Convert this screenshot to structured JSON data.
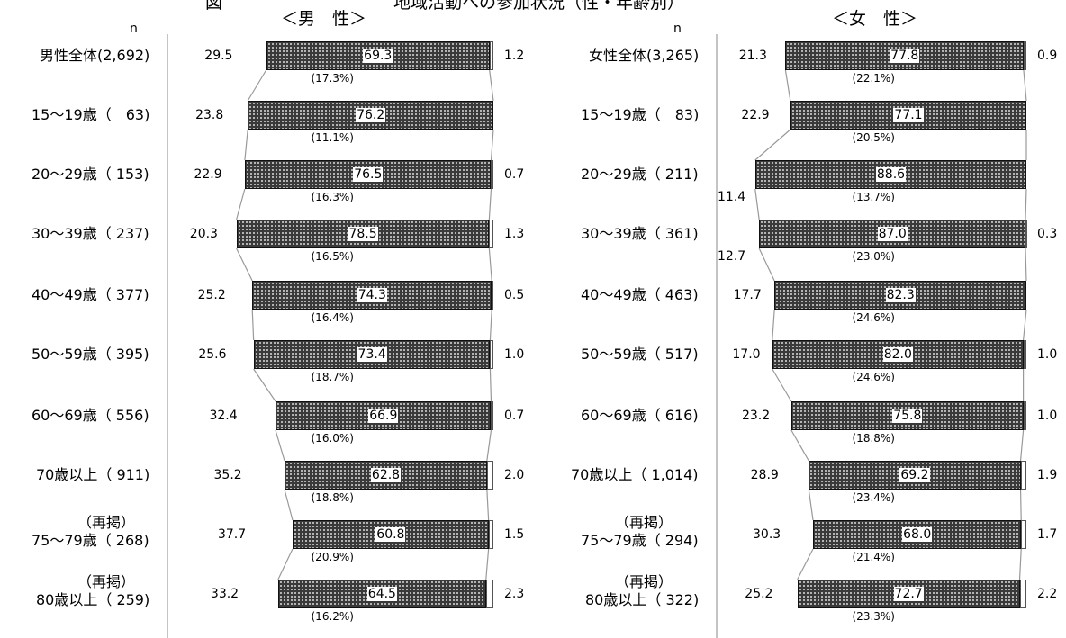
{
  "page": {
    "title_fragment": "図　　　　　　　　　　地域活動への参加状況（性・年齢別）",
    "male_header": "＜男　性＞",
    "female_header": "＜女　性＞",
    "n_label": "n"
  },
  "chart_data": [
    {
      "type": "bar",
      "stacked": "horizontal-100",
      "title": "＜男　性＞",
      "categories": [
        {
          "label": "男性全体(2,692)"
        },
        {
          "label": "15～19歳（　63)"
        },
        {
          "label": "20～29歳（ 153)"
        },
        {
          "label": "30～39歳（ 237)"
        },
        {
          "label": "40～49歳（ 377)"
        },
        {
          "label": "50～59歳（ 395)"
        },
        {
          "label": "60～69歳（ 556)"
        },
        {
          "label": "70歳以上（ 911)"
        },
        {
          "label": "75～79歳（ 268)",
          "prefix": "（再掲）"
        },
        {
          "label": "80歳以上（ 259)",
          "prefix": "（再掲）"
        }
      ],
      "segments": [
        {
          "pattern": "dotted",
          "values": [
            29.5,
            23.8,
            22.9,
            20.3,
            25.2,
            25.6,
            32.4,
            35.2,
            37.7,
            33.2
          ]
        },
        {
          "pattern": "dense",
          "values": [
            69.3,
            76.2,
            76.5,
            78.5,
            74.3,
            73.4,
            66.9,
            62.8,
            60.8,
            64.5
          ]
        },
        {
          "pattern": "blank",
          "values": [
            1.2,
            0.0,
            0.7,
            1.3,
            0.5,
            1.0,
            0.7,
            2.0,
            1.5,
            2.3
          ]
        }
      ],
      "end_labels": [
        "1.2",
        "",
        "0.7",
        "1.3",
        "0.5",
        "1.0",
        "0.7",
        "2.0",
        "1.5",
        "2.3"
      ],
      "sublabels": [
        "(17.3%)",
        "(11.1%)",
        "(16.3%)",
        "(16.5%)",
        "(16.4%)",
        "(18.7%)",
        "(16.0%)",
        "(18.8%)",
        "(20.9%)",
        "(16.2%)"
      ],
      "xlim": [
        0,
        100
      ]
    },
    {
      "type": "bar",
      "stacked": "horizontal-100",
      "title": "＜女　性＞",
      "categories": [
        {
          "label": "女性全体(3,265)"
        },
        {
          "label": "15～19歳（　83)"
        },
        {
          "label": "20～29歳（ 211)"
        },
        {
          "label": "30～39歳（ 361)"
        },
        {
          "label": "40～49歳（ 463)"
        },
        {
          "label": "50～59歳（ 517)"
        },
        {
          "label": "60～69歳（ 616)"
        },
        {
          "label": "70歳以上（ 1,014)"
        },
        {
          "label": "75～79歳（ 294)",
          "prefix": "（再掲）"
        },
        {
          "label": "80歳以上（ 322)",
          "prefix": "（再掲）"
        }
      ],
      "segments": [
        {
          "pattern": "dotted",
          "values": [
            21.3,
            22.9,
            11.4,
            12.7,
            17.7,
            17.0,
            23.2,
            28.9,
            30.3,
            25.2
          ]
        },
        {
          "pattern": "dense",
          "values": [
            77.8,
            77.1,
            88.6,
            87.0,
            82.3,
            82.0,
            75.8,
            69.2,
            68.0,
            72.7
          ]
        },
        {
          "pattern": "blank",
          "values": [
            0.9,
            0.0,
            0.0,
            0.3,
            0.0,
            1.0,
            1.0,
            1.9,
            1.7,
            2.2
          ]
        }
      ],
      "dotted_labels_outside": [
        false,
        false,
        true,
        true,
        false,
        false,
        false,
        false,
        false,
        false
      ],
      "end_labels": [
        "0.9",
        "",
        "",
        "0.3",
        "",
        "1.0",
        "1.0",
        "1.9",
        "1.7",
        "2.2"
      ],
      "sublabels": [
        "(22.1%)",
        "(20.5%)",
        "(13.7%)",
        "(23.0%)",
        "(24.6%)",
        "(24.6%)",
        "(18.8%)",
        "(23.4%)",
        "(21.4%)",
        "(23.3%)"
      ],
      "xlim": [
        0,
        100
      ]
    }
  ]
}
